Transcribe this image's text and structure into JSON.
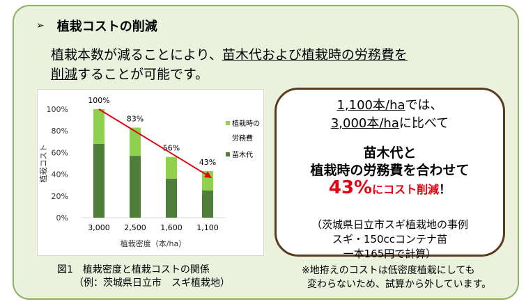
{
  "heading": {
    "marker": "➢",
    "title": "植栽コストの削減"
  },
  "intro": {
    "line1_plain": "植栽本数が減ることにより、",
    "line1_underlined": "苗木代および植栽時の労務費を",
    "line2_underlined": "削減",
    "line2_plain": "することが可能です。"
  },
  "chart_data": {
    "type": "bar",
    "stacked": true,
    "categories": [
      "3,000",
      "2,500",
      "1,600",
      "1,100"
    ],
    "series": [
      {
        "name": "苗木代",
        "values": [
          68,
          57,
          36,
          25
        ],
        "color": "#4f7d3a"
      },
      {
        "name": "植栽時の労務費",
        "values": [
          32,
          26,
          20,
          18
        ],
        "color": "#8fd14f"
      }
    ],
    "totals_labels": [
      "100%",
      "83%",
      "56%",
      "43%"
    ],
    "xlabel": "植栽密度（本/ha）",
    "ylabel": "植栽コスト",
    "ylim": [
      0,
      100
    ],
    "yticks": [
      "0%",
      "20%",
      "40%",
      "60%",
      "80%",
      "100%"
    ],
    "trend_arrow": {
      "from": "3,000",
      "to": "1,100",
      "color": "#e60012"
    },
    "legend": [
      {
        "label_line1": "植栽時の",
        "label_line2": "労務費",
        "color": "#8fd14f"
      },
      {
        "label_line1": "苗木代",
        "label_line2": "",
        "color": "#4f7d3a"
      }
    ],
    "legend_position": "right"
  },
  "caption": {
    "line1": "図1　植栽密度と植栽コストの関係",
    "line2": "（例：茨城県日立市　スギ植栽地）"
  },
  "bubble": {
    "line1_underlined": "1,100本/ha",
    "line1_plain": "では、",
    "line2_underlined": "3,000本/ha",
    "line2_plain": "に比べて",
    "line3": "苗木代と",
    "line4": "植栽時の労務費を合わせて",
    "highlight_value": "43%",
    "highlight_text": "にコスト削減",
    "highlight_excl": "！",
    "detail1": "（茨城県日立市スギ植栽地の事例",
    "detail2": "スギ・150ccコンテナ苗",
    "detail3": "一本165円で計算）"
  },
  "note": {
    "line1": "※地拵えのコストは低密度植栽にしても",
    "line2": "変わらないため、試算から外しています。"
  }
}
